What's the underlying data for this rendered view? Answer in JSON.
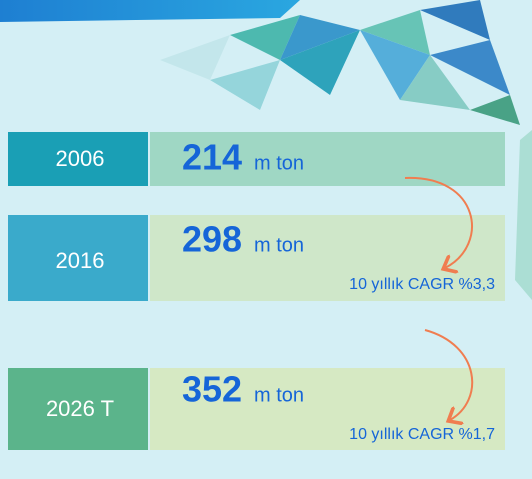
{
  "rows": [
    {
      "year": "2006",
      "value": "214",
      "unit": "m ton"
    },
    {
      "year": "2016",
      "value": "298",
      "unit": "m ton",
      "cagr": "10 yıllık CAGR %3,3"
    },
    {
      "year": "2026 T",
      "value": "352",
      "unit": "m ton",
      "cagr": "10 yıllık CAGR %1,7"
    }
  ]
}
